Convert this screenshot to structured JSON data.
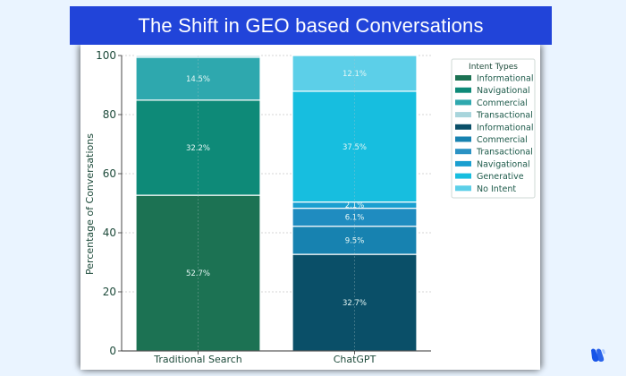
{
  "banner": {
    "title": "The Shift in  GEO based Conversations"
  },
  "chart_data": {
    "type": "bar",
    "stacked": true,
    "title": "The Shift in GEO based Conversations",
    "xlabel": "",
    "ylabel": "Percentage of Conversations",
    "ylim": [
      0,
      100
    ],
    "yticks": [
      0,
      20,
      40,
      60,
      80,
      100
    ],
    "grid": true,
    "legend_position": "upper right (outside plot)",
    "legend_title": "Intent Types",
    "categories": [
      "Traditional Search",
      "ChatGPT"
    ],
    "stacks": [
      {
        "category": "Traditional Search",
        "segments": [
          {
            "name": "Informational",
            "value": 52.7,
            "label": "52.7%",
            "color": "#1c7253"
          },
          {
            "name": "Navigational",
            "value": 32.2,
            "label": "32.2%",
            "color": "#0e8a78"
          },
          {
            "name": "Commercial",
            "value": 14.5,
            "label": "14.5%",
            "color": "#2ea8ae"
          },
          {
            "name": "Transactional",
            "value": 0.6,
            "label": "",
            "color": "#a8d5dc"
          }
        ]
      },
      {
        "category": "ChatGPT",
        "segments": [
          {
            "name": "Informational",
            "value": 32.7,
            "label": "32.7%",
            "color": "#0a4f68"
          },
          {
            "name": "Commercial",
            "value": 9.5,
            "label": "9.5%",
            "color": "#1782b0"
          },
          {
            "name": "Transactional",
            "value": 6.1,
            "label": "6.1%",
            "color": "#1f8cc0"
          },
          {
            "name": "Navigational",
            "value": 2.1,
            "label": "2.1%",
            "color": "#1a9fd0"
          },
          {
            "name": "Generative",
            "value": 37.5,
            "label": "37.5%",
            "color": "#17bedf"
          },
          {
            "name": "No Intent",
            "value": 12.1,
            "label": "12.1%",
            "color": "#5ccfe8"
          }
        ]
      }
    ],
    "legend": [
      {
        "label": "Informational",
        "color": "#1c7253"
      },
      {
        "label": "Navigational",
        "color": "#0e8a78"
      },
      {
        "label": "Commercial",
        "color": "#2ea8ae"
      },
      {
        "label": "Transactional",
        "color": "#a8d5dc"
      },
      {
        "label": "Informational",
        "color": "#0a4f68"
      },
      {
        "label": "Commercial",
        "color": "#1782b0"
      },
      {
        "label": "Transactional",
        "color": "#2a92c4"
      },
      {
        "label": "Navigational",
        "color": "#1a9fd0"
      },
      {
        "label": "Generative",
        "color": "#17bedf"
      },
      {
        "label": "No Intent",
        "color": "#5ccfe8"
      }
    ]
  },
  "colors": {
    "banner": "#2144d9",
    "background": "#eaf4ff",
    "logo": "#1553e8"
  }
}
